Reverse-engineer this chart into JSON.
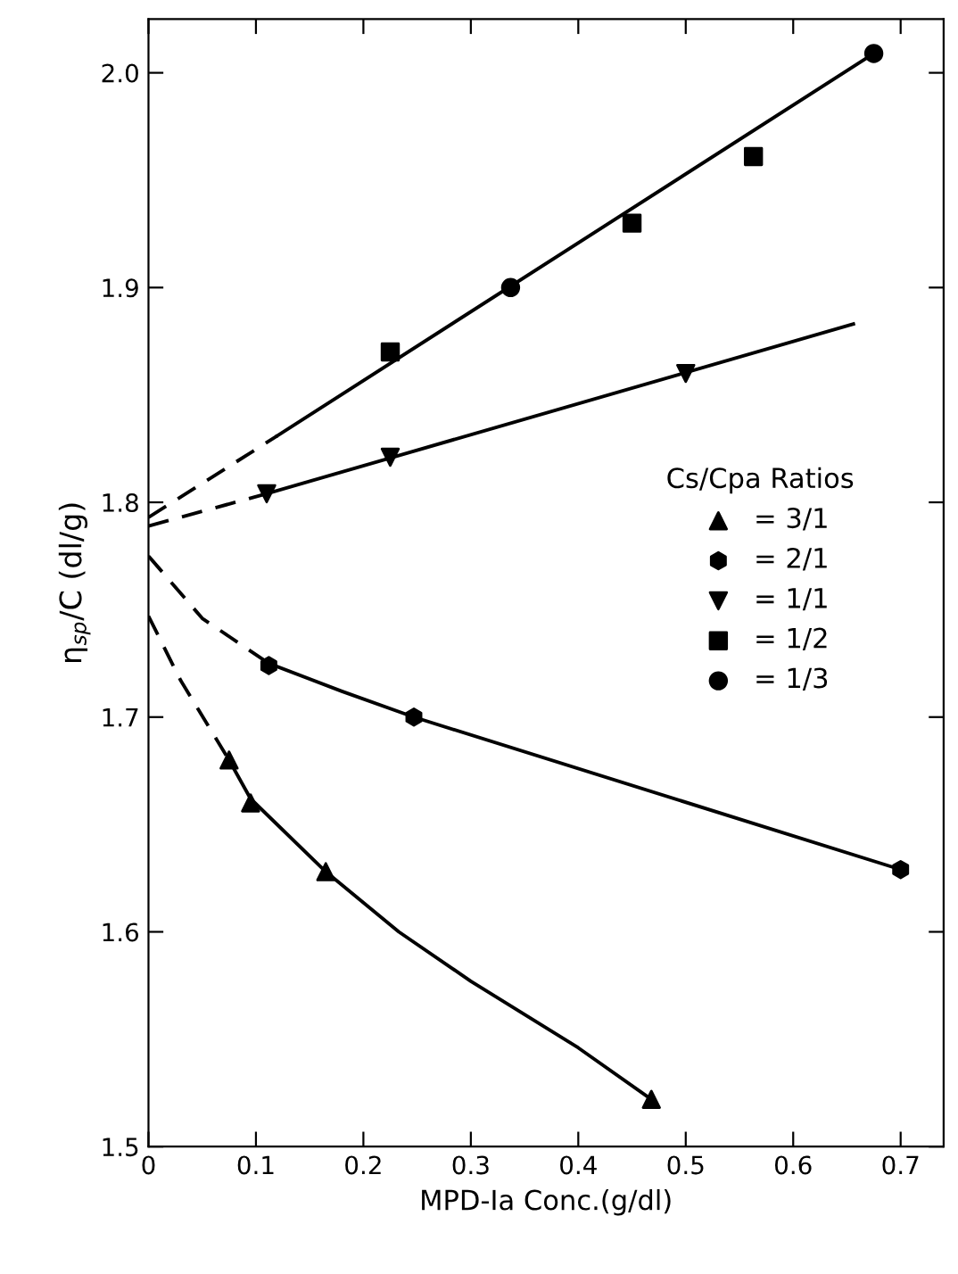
{
  "chart_data": {
    "type": "scatter",
    "xlabel": "MPD-Ia Conc.(g/dl)",
    "ylabel": "η$_{sp}$/C (dl/g)",
    "legend_title": "Cs/Cpa Ratios",
    "legend": "right",
    "grid": false,
    "xlim": [
      0,
      0.74
    ],
    "xticks": [
      0,
      0.1,
      0.2,
      0.3,
      0.4,
      0.5,
      0.6,
      0.7
    ],
    "ylim": [
      1.5,
      2.025
    ],
    "yticks": [
      1.5,
      1.6,
      1.7,
      1.8,
      1.9,
      {
        "value": 2.0,
        "label": "2.0"
      }
    ],
    "series": [
      {
        "name": "= 3/1",
        "color": "#000000",
        "marker": "triangle",
        "x": [
          0.075,
          0.095,
          0.165,
          0.468
        ],
        "values": [
          1.68,
          1.66,
          1.628,
          1.522
        ]
      },
      {
        "name": "= 2/1",
        "color": "#000000",
        "x": [
          0.112,
          0.247,
          0.7
        ],
        "values": [
          1.724,
          1.7,
          1.629
        ]
      },
      {
        "name": "= 1/1",
        "color": "#000000",
        "marker": "triangle_down",
        "x": [
          0.11,
          0.225,
          0.5
        ],
        "values": [
          1.804,
          1.821,
          1.86
        ]
      },
      {
        "name": "= 1/2",
        "color": "#000000",
        "marker": "square",
        "x": [
          0.225,
          0.45,
          0.563
        ],
        "values": [
          1.87,
          1.93,
          1.961
        ]
      },
      {
        "name": "= 1/3",
        "color": "#000000",
        "marker": "circle",
        "x": [
          0.337,
          0.675
        ],
        "values": [
          1.9,
          2.009
        ]
      },
      {
        "type": "line",
        "color": "#000000",
        "line_style": "solid",
        "x": [
          0.075,
          0.095,
          0.165,
          0.233,
          0.3,
          0.4,
          0.468
        ],
        "values": [
          1.68,
          1.662,
          1.628,
          1.6,
          1.577,
          1.546,
          1.522
        ]
      },
      {
        "type": "line",
        "color": "#000000",
        "line_style": "dashed",
        "x": [
          0,
          0.03,
          0.075
        ],
        "values": [
          1.747,
          1.717,
          1.68
        ]
      },
      {
        "type": "line",
        "color": "#000000",
        "line_style": "solid",
        "x": [
          0.112,
          0.18,
          0.247,
          0.7
        ],
        "values": [
          1.725,
          1.712,
          1.7,
          1.629
        ]
      },
      {
        "type": "line",
        "color": "#000000",
        "line_style": "dashed",
        "x": [
          0,
          0.05,
          0.112
        ],
        "values": [
          1.775,
          1.746,
          1.725
        ]
      },
      {
        "type": "line",
        "color": "#000000",
        "line_style": "solid",
        "x": [
          0.11,
          0.656
        ],
        "values": [
          1.804,
          1.883
        ]
      },
      {
        "type": "line",
        "color": "#000000",
        "line_style": "dashed",
        "x": [
          0,
          0.11
        ],
        "values": [
          1.789,
          1.804
        ]
      },
      {
        "type": "line",
        "color": "#000000",
        "line_style": "solid",
        "x": [
          0.12,
          0.675
        ],
        "values": [
          1.831,
          2.009
        ]
      },
      {
        "type": "line",
        "color": "#000000",
        "line_style": "dashed",
        "x": [
          0,
          0.12
        ],
        "values": [
          1.793,
          1.831
        ]
      }
    ]
  }
}
